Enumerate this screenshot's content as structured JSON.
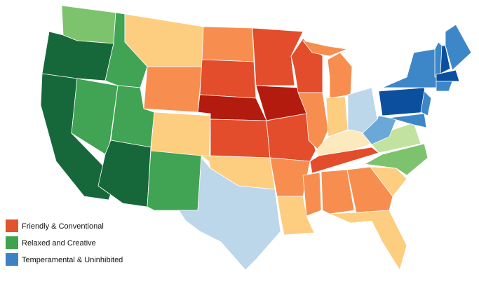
{
  "legend": {
    "items": [
      {
        "name": "Friendly & Conventional",
        "color": "#e2532e"
      },
      {
        "name": "Relaxed and Creative",
        "color": "#3fa34d"
      },
      {
        "name": "Temperamental & Uninhibited",
        "color": "#3b82c4"
      }
    ]
  }
}
